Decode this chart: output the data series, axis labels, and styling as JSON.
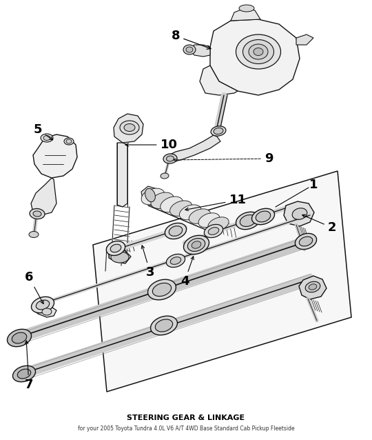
{
  "title": "STEERING GEAR & LINKAGE",
  "subtitle": "for your 2005 Toyota Tundra 4.0L V6 A/T 4WD Base Standard Cab Pickup Fleetside",
  "bg": "#ffffff",
  "lc": "#111111",
  "figsize": [
    5.4,
    6.38
  ],
  "dpi": 100,
  "xlim": [
    0,
    540
  ],
  "ylim": [
    638,
    0
  ],
  "label_fontsize": 13,
  "title_fontsize": 8,
  "sub_fontsize": 5.5
}
